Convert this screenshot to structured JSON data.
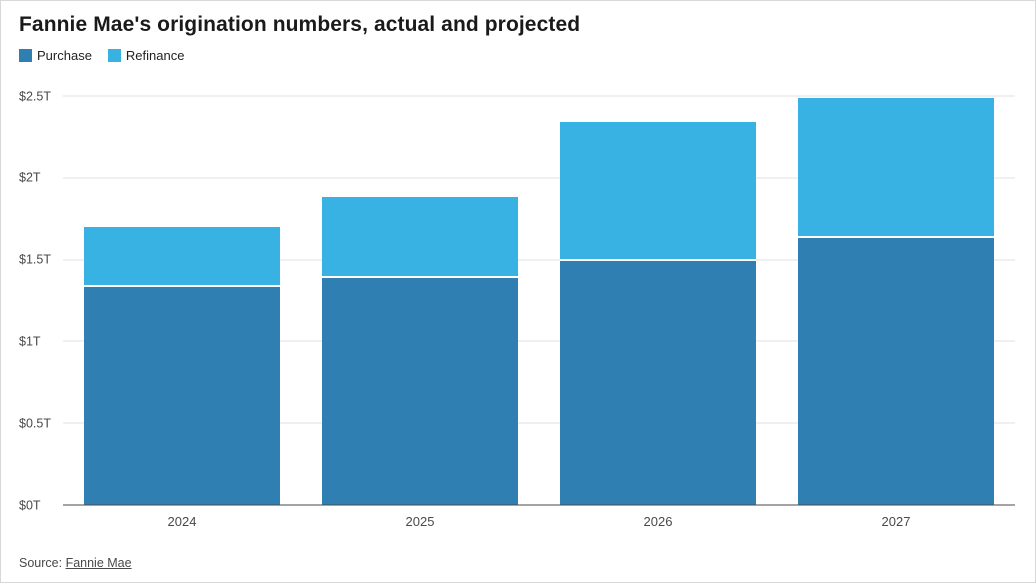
{
  "chart_data": {
    "type": "bar",
    "stacked": true,
    "title": "Fannie Mae's origination numbers, actual and projected",
    "categories": [
      "2024",
      "2025",
      "2026",
      "2027"
    ],
    "series": [
      {
        "name": "Purchase",
        "color": "#2f7fb2",
        "values": [
          1.33,
          1.39,
          1.49,
          1.63
        ]
      },
      {
        "name": "Refinance",
        "color": "#38b2e3",
        "values": [
          0.37,
          0.49,
          0.85,
          0.86
        ]
      }
    ],
    "totals": [
      1.7,
      1.88,
      2.34,
      2.49
    ],
    "xlabel": "",
    "ylabel": "",
    "ylim": [
      0,
      2.5
    ],
    "ytick_interval": 0.5,
    "ytick_labels": [
      "$0T",
      "$0.5T",
      "$1T",
      "$1.5T",
      "$2T",
      "$2.5T"
    ],
    "grid": true,
    "legend_position": "top-left"
  },
  "source": {
    "prefix": "Source: ",
    "link_label": "Fannie Mae"
  }
}
